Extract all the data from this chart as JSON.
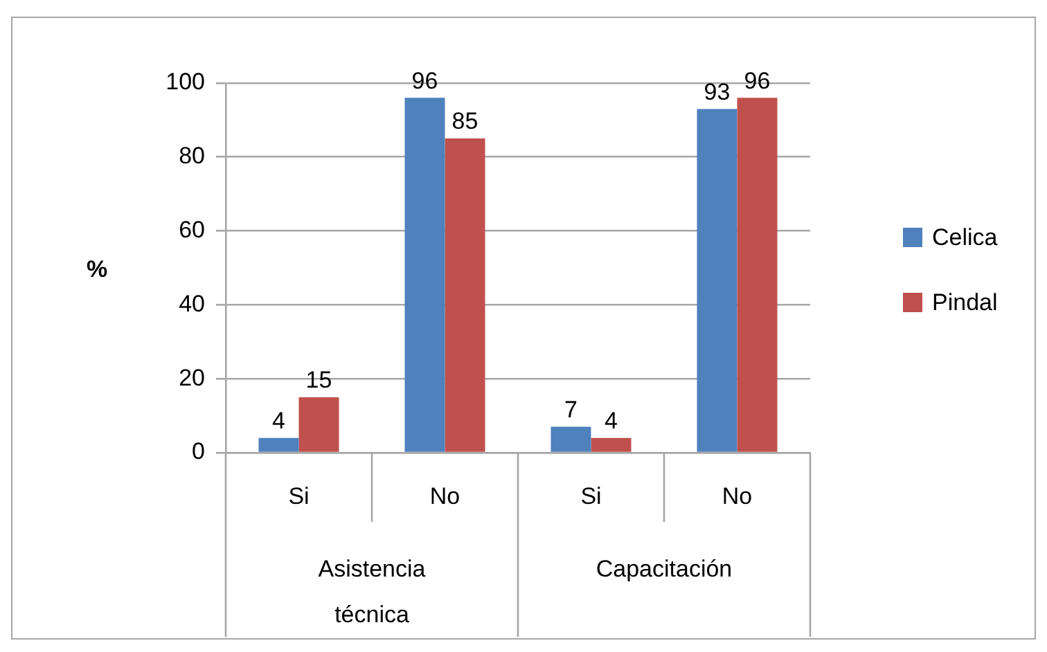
{
  "chart_data": {
    "type": "bar",
    "ylabel": "%",
    "categories": [
      "Si",
      "No",
      "Si",
      "No"
    ],
    "annotations": [
      "Asistencia técnica",
      "Capacitación"
    ],
    "series": [
      {
        "name": "Celica",
        "color": "#4f81bd",
        "values": [
          4,
          96,
          7,
          93
        ]
      },
      {
        "name": "Pindal",
        "color": "#c0504d",
        "values": [
          15,
          85,
          4,
          96
        ]
      }
    ],
    "ylim": [
      0,
      100
    ],
    "yticks": [
      0,
      20,
      40,
      60,
      80,
      100
    ],
    "grid": "y",
    "legend": "right",
    "data_labels": true
  }
}
